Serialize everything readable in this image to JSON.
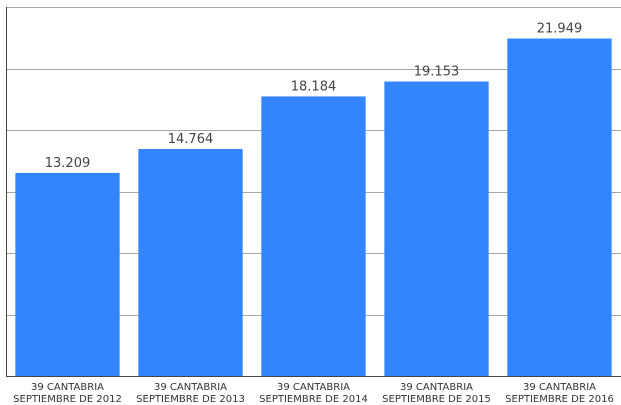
{
  "chart_data": {
    "type": "bar",
    "title": "",
    "xlabel": "",
    "ylabel": "",
    "categories": [
      [
        "39 CANTABRIA",
        "SEPTIEMBRE DE 2012"
      ],
      [
        "39 CANTABRIA",
        "SEPTIEMBRE DE 2013"
      ],
      [
        "39 CANTABRIA",
        "SEPTIEMBRE DE 2014"
      ],
      [
        "39 CANTABRIA",
        "SEPTIEMBRE DE 2015"
      ],
      [
        "39 CANTABRIA",
        "SEPTIEMBRE DE 2016"
      ]
    ],
    "values": [
      13209,
      14764,
      18184,
      19153,
      21949
    ],
    "value_labels": [
      "13.209",
      "14.764",
      "18.184",
      "19.153",
      "21.949"
    ],
    "ylim": [
      0,
      24000
    ],
    "y_grid_step": 4000,
    "grid": true,
    "y_tick_labels_shown": false,
    "legend": "none",
    "bar_color": "#3385ff",
    "grid_color": "#a6a6a6",
    "axis_color": "#444444"
  }
}
